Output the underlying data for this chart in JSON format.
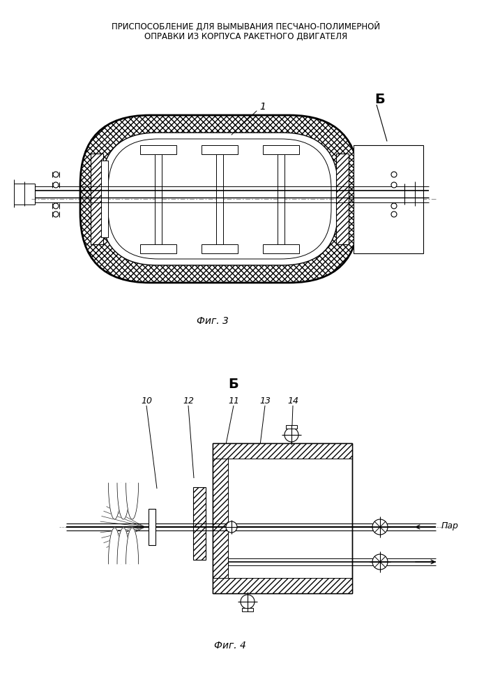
{
  "title_line1": "ПРИСПОСОБЛЕНИЕ ДЛЯ ВЫМЫВАНИЯ ПЕСЧАНО-ПОЛИМЕРНОЙ",
  "title_line2": "ОПРАВКИ ИЗ КОРПУСА РАКЕТНОГО ДВИГАТЕЛЯ",
  "fig3_label": "Фиг. 3",
  "fig4_label": "Фиг. 4",
  "label_B": "Б",
  "label_1": "1",
  "label_10": "10",
  "label_11": "11",
  "label_12": "12",
  "label_13": "13",
  "label_14": "14",
  "label_par": "Пар",
  "bg_color": "#ffffff",
  "fig_width": 7.07,
  "fig_height": 10.0
}
